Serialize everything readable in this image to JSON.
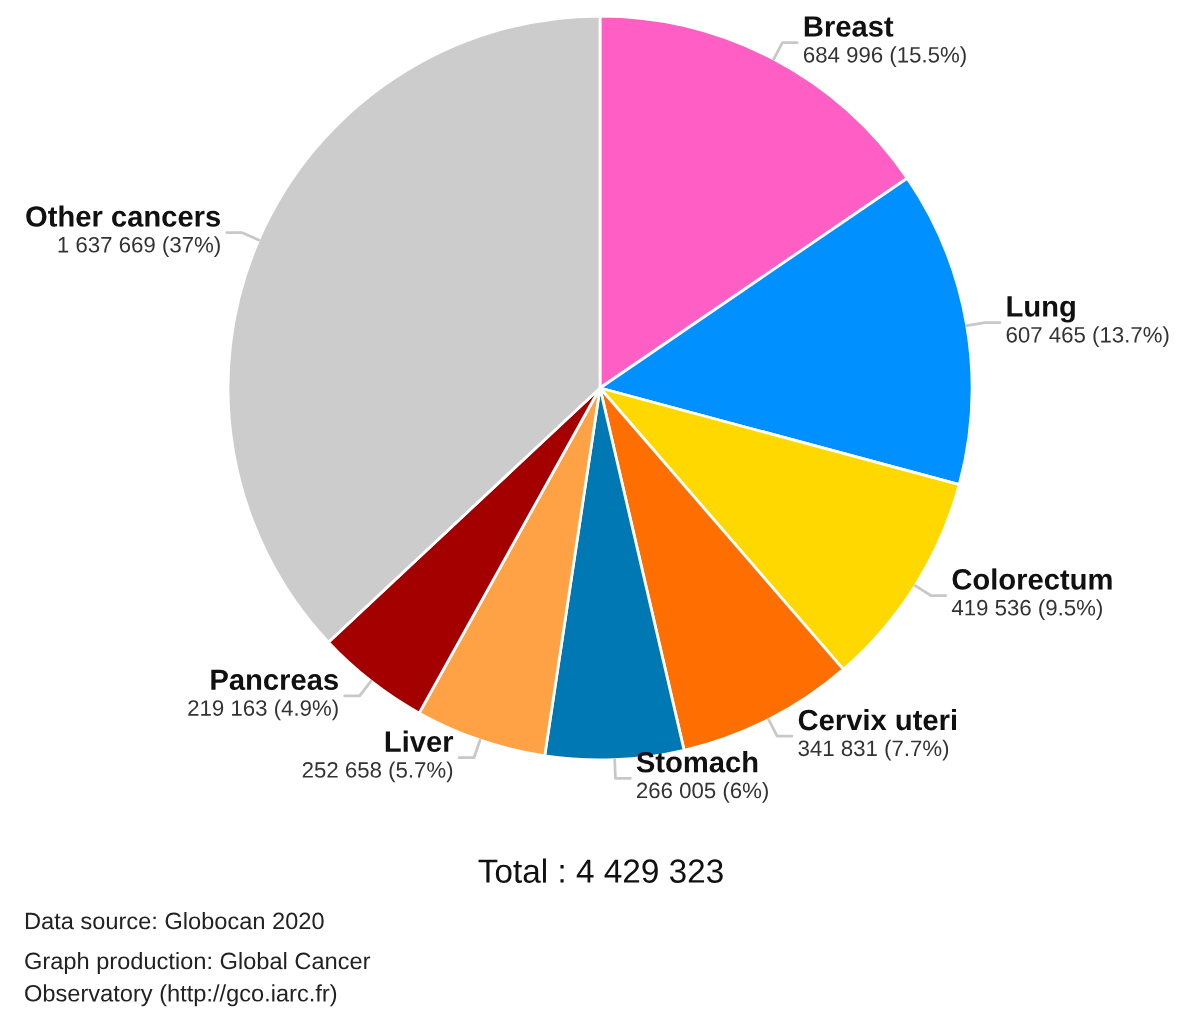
{
  "chart_data": {
    "type": "pie",
    "categories": [
      "Breast",
      "Lung",
      "Colorectum",
      "Cervix uteri",
      "Stomach",
      "Liver",
      "Pancreas",
      "Other cancers"
    ],
    "values": [
      684996,
      607465,
      419536,
      341831,
      266005,
      252658,
      219163,
      1637669
    ],
    "colors": [
      "#ff5ec4",
      "#0090ff",
      "#ffd800",
      "#ff6e00",
      "#0078b4",
      "#ffa245",
      "#a50000",
      "#cccccc"
    ],
    "value_labels": [
      "684 996 (15.5%)",
      "607 465 (13.7%)",
      "419 536 (9.5%)",
      "341 831 (7.7%)",
      "266 005 (6%)",
      "252 658 (5.7%)",
      "219 163 (4.9%)",
      "1 637 669 (37%)"
    ],
    "annotations": [
      "Total : 4 429 323",
      "Data source: Globocan 2020",
      "Graph production: Global Cancer Observatory (http://gco.iarc.fr)"
    ]
  }
}
